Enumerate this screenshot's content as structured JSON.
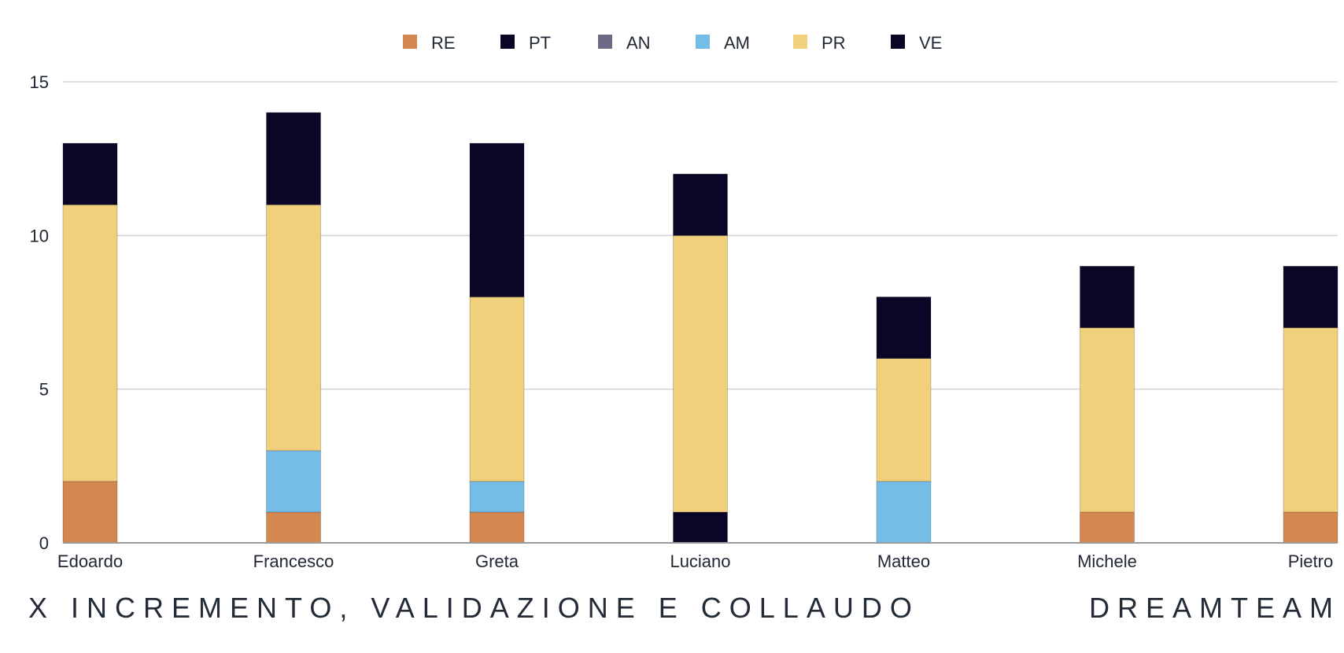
{
  "chart_data": {
    "type": "bar",
    "stacked": true,
    "categories": [
      "Edoardo",
      "Francesco",
      "Greta",
      "Luciano",
      "Matteo",
      "Michele",
      "Pietro"
    ],
    "series": [
      {
        "name": "RE",
        "color": "#d4874f",
        "values": [
          2,
          1,
          1,
          0,
          0,
          1,
          1
        ]
      },
      {
        "name": "PT",
        "color": "#0b0626",
        "values": [
          0,
          0,
          0,
          1,
          0,
          0,
          0
        ]
      },
      {
        "name": "AN",
        "color": "#6e6a85",
        "values": [
          0,
          0,
          0,
          0,
          0,
          0,
          0
        ]
      },
      {
        "name": "AM",
        "color": "#75bde6",
        "values": [
          0,
          2,
          1,
          0,
          2,
          0,
          0
        ]
      },
      {
        "name": "PR",
        "color": "#f0d07a",
        "values": [
          9,
          8,
          6,
          9,
          4,
          6,
          6
        ]
      },
      {
        "name": "VE",
        "color": "#0b0626",
        "values": [
          2,
          3,
          5,
          2,
          2,
          2,
          2
        ]
      }
    ],
    "y_ticks": [
      "0",
      "5",
      "10",
      "15"
    ],
    "ylim": [
      0,
      15
    ],
    "grid": true,
    "legend_position": "top-center"
  },
  "footer": {
    "left": "X INCREMENTO, VALIDAZIONE E COLLAUDO",
    "right": "DREAMTEAM"
  }
}
